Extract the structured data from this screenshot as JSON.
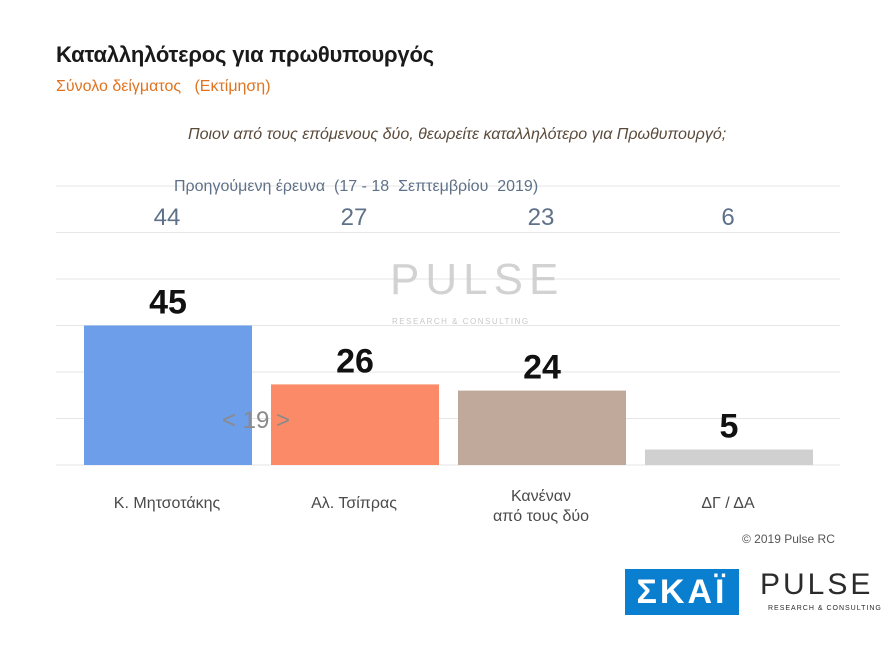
{
  "title": "Καταλληλότερος για πρωθυπουργός",
  "subtitle": "Σύνολο δείγματος   (Εκτίμηση)",
  "question": "Ποιον από τους επόμενους δύο, θεωρείτε καταλληλότερο για Πρωθυπουργό;",
  "previous_label": "Προηγούμενη έρευνα  (17 - 18  Σεπτεμβρίου  2019)",
  "gap_label": "< 19 >",
  "copyright": "© 2019 Pulse RC",
  "logos": {
    "skai": "ΣΚΑΪ",
    "pulse": "PULSE",
    "pulse_sub": "RESEARCH & CONSULTING"
  },
  "watermark": {
    "text": "PULSE",
    "sub": "RESEARCH & CONSULTING"
  },
  "colors": {
    "title": "#1a1a1a",
    "subtitle": "#e0731f",
    "previous": "#5f7188",
    "skai_bg": "#0a7fd0"
  },
  "chart_data": {
    "type": "bar",
    "categories": [
      "Κ. Μητσοτάκης",
      "Αλ. Τσίπρας",
      "Κανέναν\nαπό τους δύο",
      "ΔΓ / ΔΑ"
    ],
    "values": [
      45,
      26,
      24,
      5
    ],
    "previous_values": [
      44,
      27,
      23,
      6
    ],
    "colors": [
      "#6c9eea",
      "#fb8a68",
      "#c0a99b",
      "#d0d0d0"
    ],
    "ylim": [
      0,
      50
    ],
    "grid": true
  }
}
